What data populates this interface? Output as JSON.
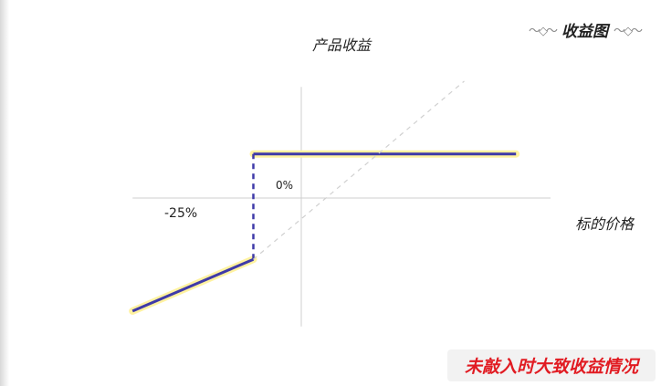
{
  "title": "收益图",
  "caption": "未敲入时大致收益情况",
  "chart_data": {
    "type": "line",
    "title": "收益图",
    "ylabel": "产品收益",
    "xlabel": "标的价格",
    "tick_labels": {
      "origin": "0%",
      "barrier": "-25%"
    },
    "barrier_x": -25,
    "series": [
      {
        "style": "solid",
        "color": "#3f3aa8",
        "glow": "#fff2a0",
        "points": [
          [
            -88,
            -59
          ],
          [
            -25,
            -32
          ]
        ]
      },
      {
        "style": "solid",
        "color": "#3f3aa8",
        "glow": "#fff2a0",
        "points": [
          [
            -25,
            23
          ],
          [
            112,
            23
          ]
        ]
      },
      {
        "style": "dashed",
        "color": "#3f3aa8",
        "points": [
          [
            -25,
            -32
          ],
          [
            -25,
            23
          ]
        ]
      },
      {
        "style": "dashed-light",
        "color": "#d0d0d0",
        "points": [
          [
            -25,
            -32
          ],
          [
            85,
            61
          ]
        ]
      }
    ],
    "xlim": [
      -100,
      130
    ],
    "ylim": [
      -70,
      70
    ],
    "grid": false
  }
}
